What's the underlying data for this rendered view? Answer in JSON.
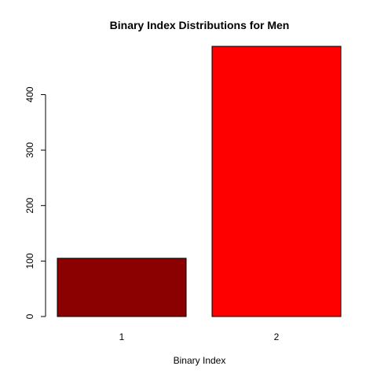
{
  "chart_data": {
    "type": "bar",
    "title": "Binary Index Distributions for Men",
    "xlabel": "Binary Index",
    "ylabel": "",
    "categories": [
      "1",
      "2"
    ],
    "values": [
      105,
      487
    ],
    "colors": [
      "#8b0000",
      "#ff0000"
    ],
    "yticks": [
      0,
      100,
      200,
      300,
      400
    ],
    "ylim": [
      0,
      487
    ],
    "grid": false,
    "legend": "none"
  }
}
